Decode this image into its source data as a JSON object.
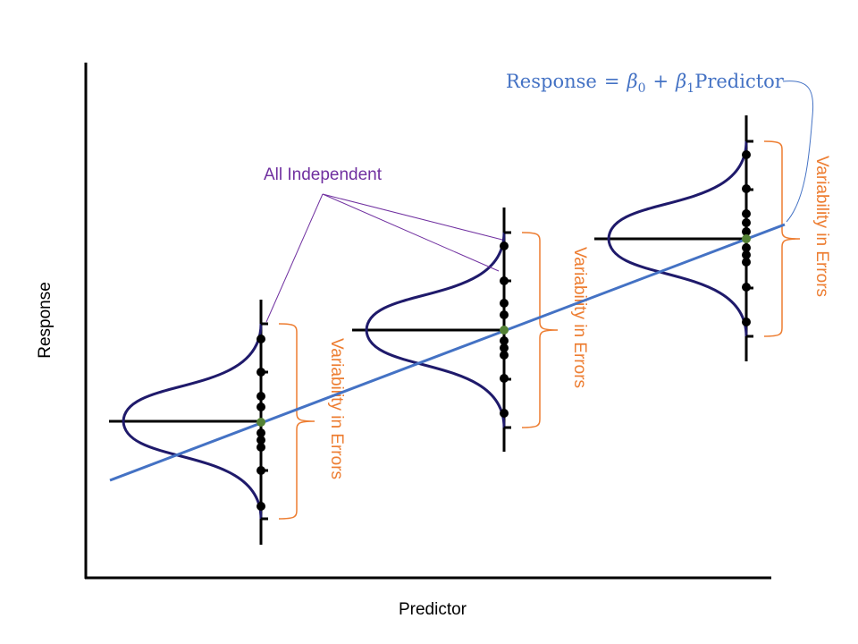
{
  "axes": {
    "x_label": "Predictor",
    "y_label": "Response"
  },
  "annotations": {
    "independence_label": "All Independent",
    "variability_label": "Variability in Errors",
    "equation": {
      "lhs": "Response",
      "equals": "=",
      "beta": "β",
      "sub0": "0",
      "plus": "+",
      "sub1": "1",
      "predictor": "Predictor"
    }
  },
  "colors": {
    "axis": "#000000",
    "regression_line": "#4472C4",
    "bell_curve": "#1F1A6B",
    "data_point": "#000000",
    "mean_point": "#548235",
    "brace": "#ED7D31",
    "variability_text": "#ED7D31",
    "independence_text": "#7030A0",
    "equation_text": "#4472C4"
  },
  "groups": [
    {
      "name": "group-1",
      "point_count": 12
    },
    {
      "name": "group-2",
      "point_count": 12
    },
    {
      "name": "group-3",
      "point_count": 12
    }
  ]
}
